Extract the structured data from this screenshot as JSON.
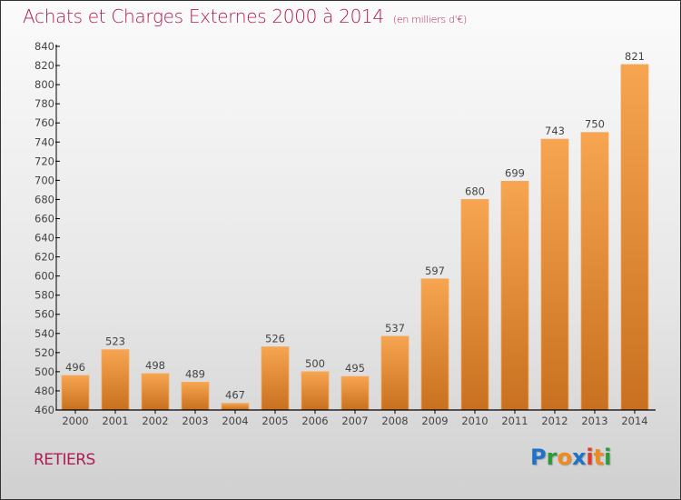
{
  "header": {
    "title": "Achats et Charges Externes 2000 à 2014",
    "subtitle": "(en milliers d'€)"
  },
  "footer": {
    "town": "RETIERS",
    "logo": {
      "letters": [
        {
          "char": "P",
          "color": "#1e73c8"
        },
        {
          "char": "r",
          "color": "#2a9a3a"
        },
        {
          "char": "o",
          "color": "#f08a1c"
        },
        {
          "char": "x",
          "color": "#1e73c8"
        },
        {
          "char": "i",
          "color": "#e23a2a"
        },
        {
          "char": "t",
          "color": "#f08a1c"
        },
        {
          "char": "i",
          "color": "#2a9a3a"
        }
      ]
    }
  },
  "colors": {
    "title": "#b01c55",
    "bar_top": "#f7a550",
    "bar_bottom": "#c8701f",
    "axis": "#000000",
    "label": "#444444"
  },
  "chart_data": {
    "type": "bar",
    "title": "Achats et Charges Externes 2000 à 2014",
    "subtitle": "(en milliers d'€)",
    "xlabel": "",
    "ylabel": "",
    "categories": [
      "2000",
      "2001",
      "2002",
      "2003",
      "2004",
      "2005",
      "2006",
      "2007",
      "2008",
      "2009",
      "2010",
      "2011",
      "2012",
      "2013",
      "2014"
    ],
    "values": [
      496,
      523,
      498,
      489,
      467,
      526,
      500,
      495,
      537,
      597,
      680,
      699,
      743,
      750,
      821
    ],
    "ylim": [
      460,
      840
    ],
    "yticks": [
      460,
      480,
      500,
      520,
      540,
      560,
      580,
      600,
      620,
      640,
      660,
      680,
      700,
      720,
      740,
      760,
      780,
      800,
      820,
      840
    ],
    "grid": false,
    "legend": "none",
    "data_labels": true
  }
}
